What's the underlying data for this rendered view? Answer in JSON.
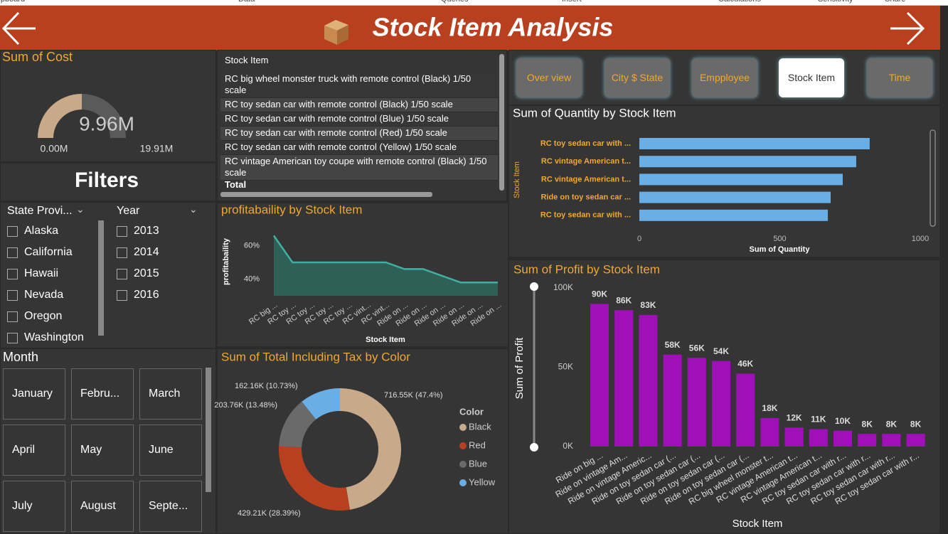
{
  "ribbon": [
    "Clipboard",
    "Data",
    "Queries",
    "Insert",
    "Calculations",
    "Sensitivity",
    "Share"
  ],
  "header": {
    "title": "Stock Item Analysis"
  },
  "gauge": {
    "title": "Sum of Cost",
    "value": 9.96,
    "value_label": "9.96M",
    "min": 0,
    "min_label": "0.00M",
    "max": 19.91,
    "max_label": "19.91M"
  },
  "table": {
    "header": "Stock Item",
    "rows": [
      "RC big wheel monster truck with remote control (Black) 1/50 scale",
      "RC toy sedan car with remote control (Black) 1/50 scale",
      "RC toy sedan car with remote control (Blue) 1/50 scale",
      "RC toy sedan car with remote control (Red) 1/50 scale",
      "RC toy sedan car with remote control (Yellow) 1/50 scale",
      "RC vintage American toy coupe with remote control (Black) 1/50 scale"
    ],
    "total": "Total"
  },
  "filters": {
    "title": "Filters",
    "state": {
      "title": "State Provi...",
      "items": [
        "Alaska",
        "California",
        "Hawaii",
        "Nevada",
        "Oregon",
        "Washington"
      ]
    },
    "year": {
      "title": "Year",
      "items": [
        "2013",
        "2014",
        "2015",
        "2016"
      ]
    },
    "month": {
      "title": "Month",
      "items": [
        "January",
        "Febru...",
        "March",
        "April",
        "May",
        "June",
        "July",
        "August",
        "Septe..."
      ]
    }
  },
  "nav": [
    "Over view",
    "City $ State",
    "Empployee",
    "Stock Item",
    "Time"
  ],
  "chart_data": [
    {
      "type": "barh",
      "title": "Sum of Quantity by Stock Item",
      "categories": [
        "RC toy sedan car with ...",
        "RC vintage American t...",
        "RC vintage American t...",
        "Ride on toy sedan car ...",
        "RC toy sedan car with ..."
      ],
      "values": [
        820,
        772,
        724,
        681,
        671
      ],
      "color": "#6aaee6",
      "xlim": [
        0,
        1000
      ],
      "xticks": [
        0,
        500,
        1000
      ],
      "x_label": "Sum of Quantity",
      "y_label": "Stock Item"
    },
    {
      "type": "area",
      "title": "profitabaility by Stock Item",
      "categories": [
        "RC big ...",
        "RC toy ...",
        "RC toy ...",
        "RC toy ...",
        "RC toy ...",
        "RC vint...",
        "RC vint...",
        "Ride on ...",
        "Ride on ...",
        "Ride on ...",
        "Ride on ...",
        "Ride on ...",
        "Ride on ..."
      ],
      "values": [
        66,
        50,
        50,
        50,
        50,
        50,
        50,
        46,
        46,
        42,
        38,
        38,
        38
      ],
      "color": "#3fb0a0",
      "ylim": [
        30,
        70
      ],
      "yticks": [
        {
          "value": 40,
          "label": "40%"
        },
        {
          "value": 60,
          "label": "60%"
        }
      ],
      "x_label": "Stock Item",
      "y_label": "profitabaility"
    },
    {
      "type": "donut",
      "title": "Sum of Total Including Tax by Color",
      "legend_title": "Color",
      "categories": [
        "Black",
        "Red",
        "Blue",
        "Yellow"
      ],
      "values": [
        716550,
        429210,
        203760,
        162160
      ],
      "value_labels": [
        "716.55K (47.4%)",
        "429.21K (28.39%)",
        "203.76K (13.48%)",
        "162.16K (10.73%)"
      ],
      "colors": [
        "#c8a98a",
        "#b8401f",
        "#6a6a6a",
        "#6aaee6"
      ]
    },
    {
      "type": "bar",
      "title": "Sum of Profit by Stock Item",
      "categories": [
        "Ride on big ...",
        "Ride on vintage Am...",
        "Ride on vintage Americ...",
        "Ride on toy sedan car (...",
        "Ride on toy sedan car (...",
        "Ride on toy sedan car (...",
        "Ride on toy sedan car (...",
        "RC big wheel monster t...",
        "RC vintage American t...",
        "RC vintage American t...",
        "RC toy sedan car with r...",
        "RC toy sedan car with r...",
        "RC toy sedan car with r...",
        "RC toy sedan car with r..."
      ],
      "values": [
        90000,
        86000,
        83000,
        58000,
        56000,
        54000,
        46000,
        18000,
        12000,
        11000,
        10000,
        8000,
        8000,
        8000
      ],
      "value_labels": [
        "90K",
        "86K",
        "83K",
        "58K",
        "56K",
        "54K",
        "46K",
        "18K",
        "12K",
        "11K",
        "10K",
        "8K",
        "8K",
        "8K"
      ],
      "color": "#a010b8",
      "ylim": [
        0,
        100000
      ],
      "yticks": [
        {
          "value": 0,
          "label": "0K"
        },
        {
          "value": 50000,
          "label": "50K"
        },
        {
          "value": 100000,
          "label": "100K"
        }
      ],
      "x_label": "Stock Item",
      "y_label": "Sum of Profit"
    }
  ]
}
